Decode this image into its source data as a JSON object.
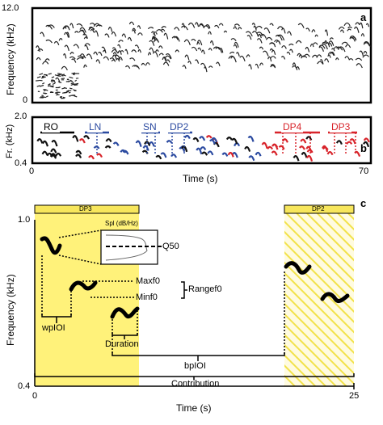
{
  "panel_a": {
    "letter": "a",
    "ylabel": "Frequency (kHz)",
    "y_max_tick": "12.0",
    "y_min_tick": "0"
  },
  "panel_b": {
    "letter": "b",
    "ylabel": "Fr. (kHz)",
    "y_max_tick": "2.0",
    "y_min_tick": "0.4",
    "x_min_tick": "0",
    "x_max_tick": "70",
    "xlabel": "Time (s)",
    "categories": [
      {
        "label": "RO",
        "color": "#000000"
      },
      {
        "label": "LN",
        "color": "#2b4aa0"
      },
      {
        "label": "SN",
        "color": "#2b4aa0"
      },
      {
        "label": "DP2",
        "color": "#2b4aa0"
      },
      {
        "label": "DP4",
        "color": "#d8232a"
      },
      {
        "label": "DP3",
        "color": "#d8232a"
      }
    ]
  },
  "panel_c": {
    "letter": "c",
    "ylabel": "Frequency (kHz)",
    "y_max_tick": "1.0",
    "y_min_tick": "0.4",
    "x_min_tick": "0",
    "x_max_tick": "25",
    "xlabel": "Time (s)",
    "band_left": "DP3",
    "band_right": "DP2",
    "inset_title": "Spl (dB/Hz)",
    "q50": "Q50",
    "maxf0": "Maxf0",
    "minf0": "Minf0",
    "rangef0": "Rangef0",
    "wpioi": "wpIOI",
    "duration": "Duration",
    "bpioi": "bpIOI",
    "contribution": "Contribution",
    "colors": {
      "band": "#fff27a",
      "band_header": "#f7e65c"
    }
  }
}
